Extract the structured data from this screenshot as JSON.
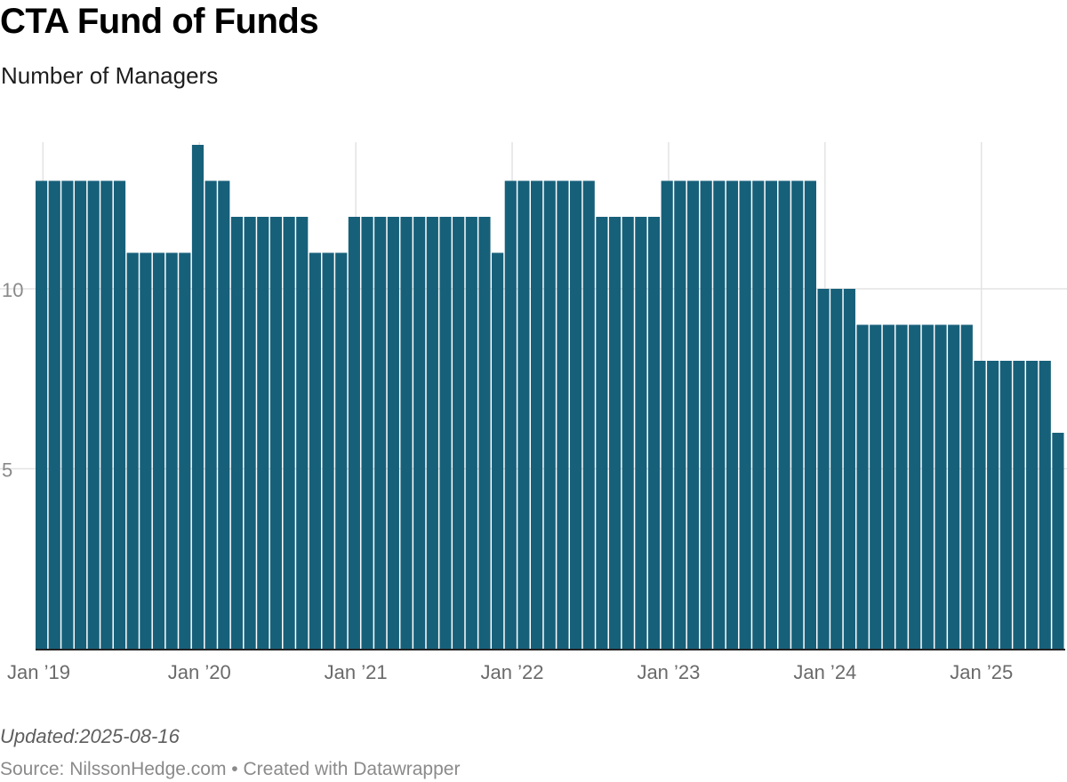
{
  "header": {
    "title": "CTA Fund of Funds",
    "subtitle": "Number of Managers"
  },
  "footer": {
    "notes": "Updated:2025-08-16",
    "source_prefix": "Source: ",
    "source": "NilssonHedge.com",
    "separator": " • ",
    "credit": "Created with Datawrapper"
  },
  "colors": {
    "bar": "#17607a",
    "grid": "#e3e3e3",
    "axis": "#222222"
  },
  "chart_data": {
    "type": "bar",
    "title": "CTA Fund of Funds",
    "subtitle": "Number of Managers",
    "xlabel": "",
    "ylabel": "",
    "ylim": [
      0,
      14
    ],
    "y_ticks": [
      5,
      10
    ],
    "x_ticks": [
      "Jan ’19",
      "Jan ’20",
      "Jan ’21",
      "Jan ’22",
      "Jan ’23",
      "Jan ’24",
      "Jan ’25"
    ],
    "grid": true,
    "legend": "none",
    "series": [
      {
        "x": [
          "2019-01",
          "2019-02",
          "2019-03",
          "2019-04",
          "2019-05",
          "2019-06",
          "2019-07",
          "2019-08",
          "2019-09",
          "2019-10",
          "2019-11",
          "2019-12",
          "2020-01",
          "2020-02",
          "2020-03",
          "2020-04",
          "2020-05",
          "2020-06",
          "2020-07",
          "2020-08",
          "2020-09",
          "2020-10",
          "2020-11",
          "2020-12",
          "2021-01",
          "2021-02",
          "2021-03",
          "2021-04",
          "2021-05",
          "2021-06",
          "2021-07",
          "2021-08",
          "2021-09",
          "2021-10",
          "2021-11",
          "2021-12",
          "2022-01",
          "2022-02",
          "2022-03",
          "2022-04",
          "2022-05",
          "2022-06",
          "2022-07",
          "2022-08",
          "2022-09",
          "2022-10",
          "2022-11",
          "2022-12",
          "2023-01",
          "2023-02",
          "2023-03",
          "2023-04",
          "2023-05",
          "2023-06",
          "2023-07",
          "2023-08",
          "2023-09",
          "2023-10",
          "2023-11",
          "2023-12",
          "2024-01",
          "2024-02",
          "2024-03",
          "2024-04",
          "2024-05",
          "2024-06",
          "2024-07",
          "2024-08",
          "2024-09",
          "2024-10",
          "2024-11",
          "2024-12",
          "2025-01",
          "2025-02",
          "2025-03",
          "2025-04",
          "2025-05",
          "2025-06",
          "2025-07"
        ],
        "values": [
          13,
          13,
          13,
          13,
          13,
          13,
          13,
          11,
          11,
          11,
          11,
          11,
          14,
          13,
          13,
          12,
          12,
          12,
          12,
          12,
          12,
          11,
          11,
          11,
          12,
          12,
          12,
          12,
          12,
          12,
          12,
          12,
          12,
          12,
          12,
          11,
          13,
          13,
          13,
          13,
          13,
          13,
          13,
          12,
          12,
          12,
          12,
          12,
          13,
          13,
          13,
          13,
          13,
          13,
          13,
          13,
          13,
          13,
          13,
          13,
          10,
          10,
          10,
          9,
          9,
          9,
          9,
          9,
          9,
          9,
          9,
          9,
          8,
          8,
          8,
          8,
          8,
          8,
          6
        ]
      }
    ]
  }
}
